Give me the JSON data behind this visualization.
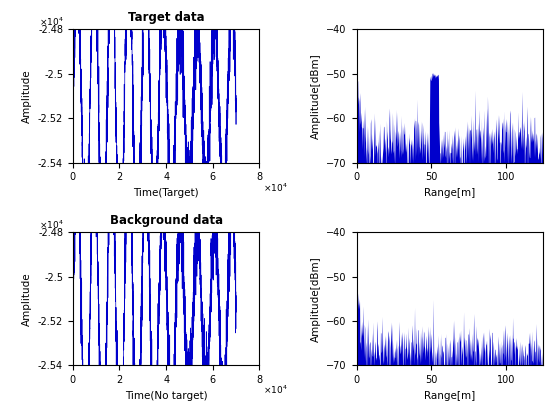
{
  "title_tl": "Target data",
  "title_bl": "Background data",
  "xlabel_tl": "Time(Target)",
  "xlabel_bl": "Time(No target)",
  "ylabel_tl": "Amplitude",
  "ylabel_bl": "Amplitude",
  "ylabel_tr": "Amplitude[dBm]",
  "ylabel_br": "Amplitude[dBm]",
  "xlabel_tr": "Range[m]",
  "xlabel_br": "Range[m]",
  "xlim_time": [
    0,
    80000
  ],
  "xticks_time": [
    0,
    20000,
    40000,
    60000,
    80000
  ],
  "xticklabels_time": [
    "0",
    "2",
    "4",
    "6",
    "8"
  ],
  "ylim_time": [
    -25400,
    -24800
  ],
  "yticks_time": [
    -25400,
    -25200,
    -25000,
    -24800
  ],
  "yticklabels_time": [
    "-2.54",
    "-2.52",
    "-2.5",
    "-2.48"
  ],
  "xlim_range": [
    0,
    125
  ],
  "xticks_range": [
    0,
    50,
    100
  ],
  "ylim_range": [
    -70,
    -40
  ],
  "yticks_range": [
    -70,
    -60,
    -50,
    -40
  ],
  "line_color": "#0000cc",
  "fill_color": "#0000cc",
  "bg_color": "#ffffff",
  "n_time_points": 3000,
  "time_cycles": 9.5,
  "time_mean": -25150,
  "time_amp_outer": 550,
  "time_amp_inner": 200,
  "time_env_cycles": 1.0,
  "n_range_points": 500,
  "range_noise_floor": -67,
  "range_noise_std": 3.5,
  "target_peak_range": 52,
  "target_peak_height": -50.5,
  "seed_tl": 42,
  "seed_bl": 99,
  "seed_tr": 7,
  "seed_br": 13
}
